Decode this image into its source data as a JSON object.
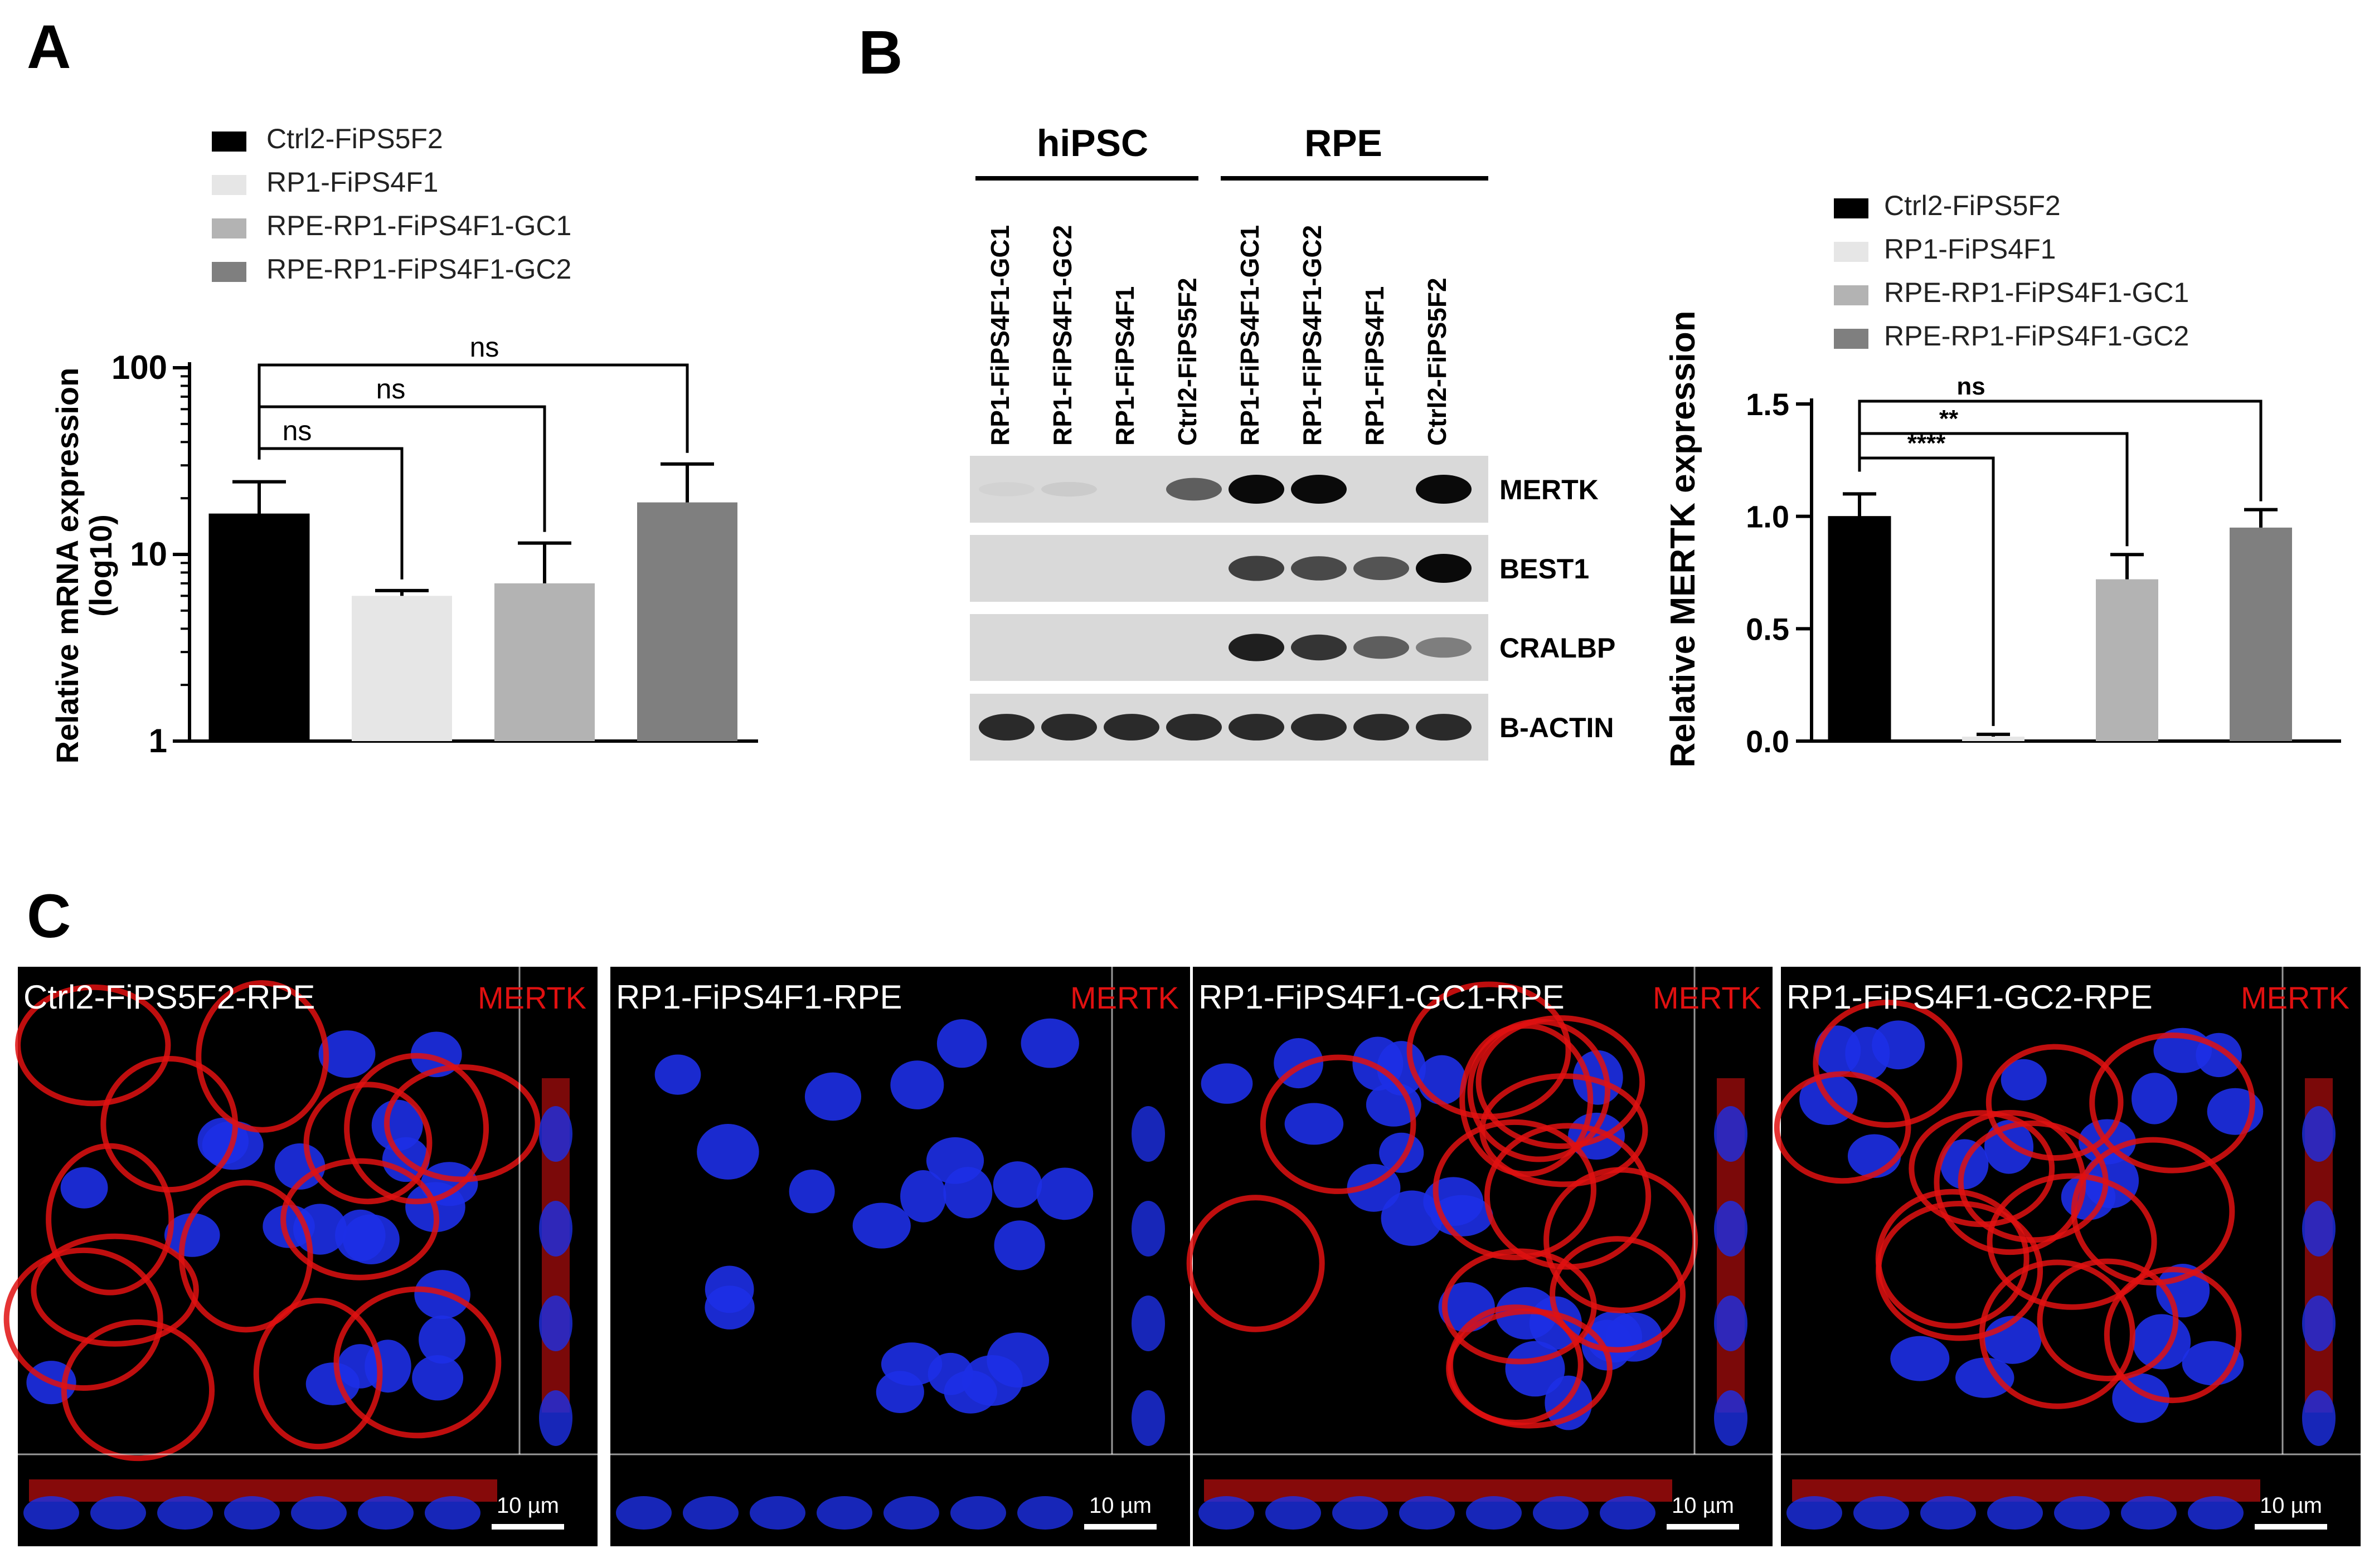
{
  "panels": {
    "a": "A",
    "b": "B",
    "c": "C"
  },
  "colors": {
    "ctrl": "#000000",
    "rp1": "#e6e6e6",
    "gc1": "#b3b3b3",
    "gc2": "#7f7f7f",
    "red": "#e01010",
    "nucleus": "#1d2fe6"
  },
  "chart_data": [
    {
      "type": "bar",
      "panel": "A",
      "categories": [
        "Ctrl2-FiPS5F2",
        "RP1-FiPS4F1",
        "RPE-RP1-FiPS4F1-GC1",
        "RPE-RP1-FiPS4F1-GC2"
      ],
      "values": [
        16.5,
        6.0,
        7.0,
        19.0
      ],
      "errors": [
        8.0,
        0.4,
        4.5,
        11.5
      ],
      "ylabel": "Relative mRNA expression\n(log10)",
      "yscale": "log",
      "ylim": [
        1,
        100
      ],
      "yticks": [
        "1",
        "10",
        "100"
      ],
      "legend": [
        "Ctrl2-FiPS5F2",
        "RP1-FiPS4F1",
        "RPE-RP1-FiPS4F1-GC1",
        "RPE-RP1-FiPS4F1-GC2"
      ],
      "annotations": [
        "ns",
        "ns",
        "ns"
      ]
    },
    {
      "type": "bar",
      "panel": "B",
      "categories": [
        "Ctrl2-FiPS5F2",
        "RP1-FiPS4F1",
        "RPE-RP1-FiPS4F1-GC1",
        "RPE-RP1-FiPS4F1-GC2"
      ],
      "values": [
        1.0,
        0.02,
        0.72,
        0.95
      ],
      "errors": [
        0.1,
        0.01,
        0.11,
        0.08
      ],
      "ylabel": "Relative MERTK expression",
      "ylim": [
        0,
        1.5
      ],
      "yticks": [
        "0.0",
        "0.5",
        "1.0",
        "1.5"
      ],
      "legend": [
        "Ctrl2-FiPS5F2",
        "RP1-FiPS4F1",
        "RPE-RP1-FiPS4F1-GC1",
        "RPE-RP1-FiPS4F1-GC2"
      ],
      "annotations": [
        "****",
        "**",
        "ns"
      ]
    }
  ],
  "blot": {
    "groups": [
      "hiPSC",
      "RPE"
    ],
    "lanes": [
      "RP1-FiPS4F1-GC1",
      "RP1-FiPS4F1-GC2",
      "RP1-FiPS4F1",
      "Ctrl2-FiPS5F2",
      "RP1-FiPS4F1-GC1",
      "RP1-FiPS4F1-GC2",
      "RP1-FiPS4F1",
      "Ctrl2-FiPS5F2"
    ],
    "rows": [
      {
        "label": "MERTK",
        "intensity": [
          0.05,
          0.08,
          0,
          0.6,
          1.0,
          1.0,
          0,
          1.0
        ]
      },
      {
        "label": "BEST1",
        "intensity": [
          0,
          0,
          0,
          0,
          0.75,
          0.7,
          0.65,
          1.0
        ]
      },
      {
        "label": "CRALBP",
        "intensity": [
          0,
          0,
          0,
          0,
          0.9,
          0.8,
          0.6,
          0.45
        ]
      },
      {
        "label": "B-ACTIN",
        "intensity": [
          0.85,
          0.85,
          0.85,
          0.85,
          0.85,
          0.85,
          0.85,
          0.85
        ]
      }
    ]
  },
  "images": [
    {
      "label": "Ctrl2-FiPS5F2-RPE",
      "marker": "MERTK",
      "scale": "10 µm",
      "red": true
    },
    {
      "label": "RP1-FiPS4F1-RPE",
      "marker": "MERTK",
      "scale": "10 µm",
      "red": false
    },
    {
      "label": "RP1-FiPS4F1-GC1-RPE",
      "marker": "MERTK",
      "scale": "10 µm",
      "red": true
    },
    {
      "label": "RP1-FiPS4F1-GC2-RPE",
      "marker": "MERTK",
      "scale": "10 µm",
      "red": true
    }
  ]
}
